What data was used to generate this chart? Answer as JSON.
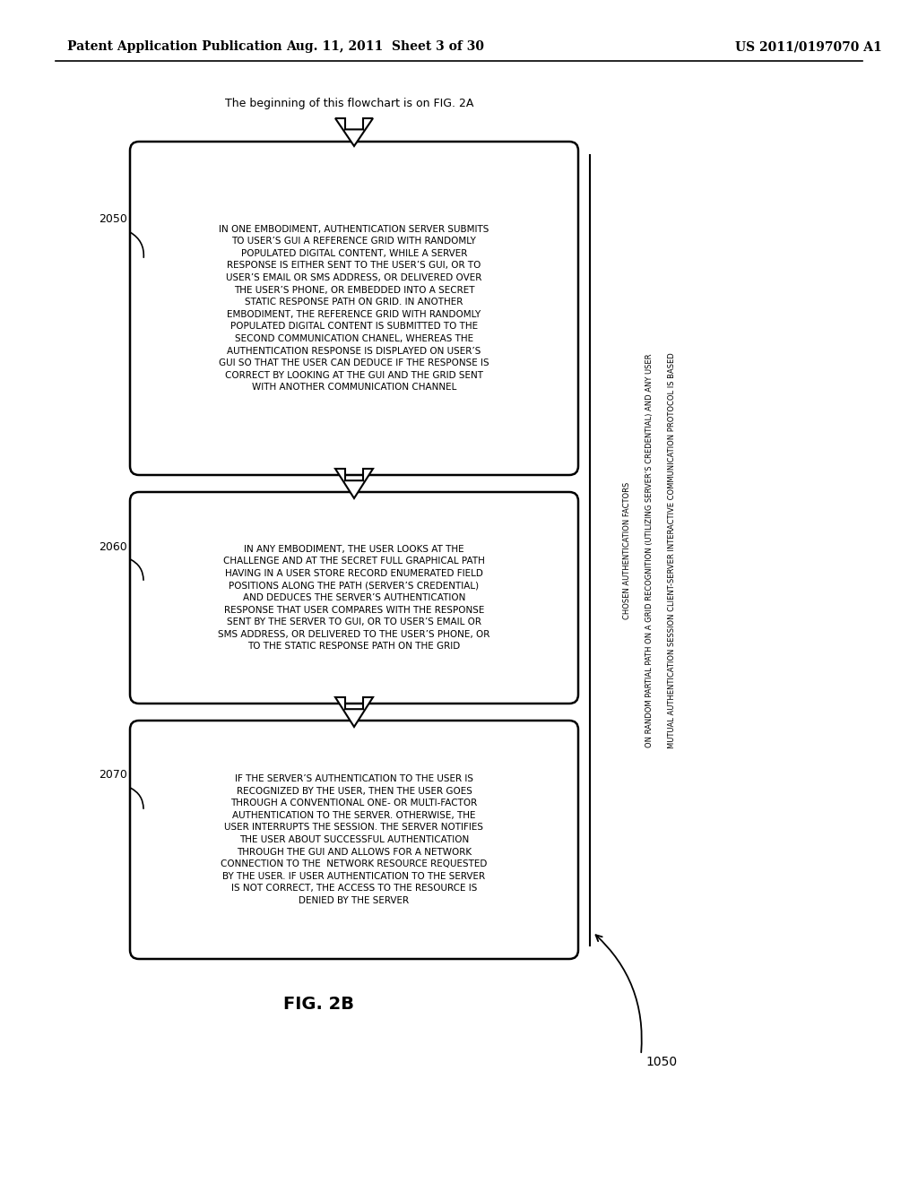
{
  "background_color": "#ffffff",
  "header_left": "Patent Application Publication",
  "header_mid": "Aug. 11, 2011  Sheet 3 of 30",
  "header_right": "US 2011/0197070 A1",
  "top_note": "The beginning of this flowchart is on FIG. 2A",
  "fig_label": "FIG. 2B",
  "arrow_label": "1050",
  "side_label_line1": "MUTUAL AUTHENTICATION SESSION CLIENT-SERVER INTERACTIVE COMMUNICATION PROTOCOL IS BASED",
  "side_label_line2": "ON RANDOM PARTIAL PATH ON A GRID RECOGNITION (UTILIZING SERVER’S CREDENTIAL) AND ANY USER",
  "side_label_line3": "CHOSEN AUTHENTICATION FACTORS",
  "box1_label": "2050",
  "box1_text": "IN ONE EMBODIMENT, AUTHENTICATION SERVER SUBMITS\nTO USER’S GUI A REFERENCE GRID WITH RANDOMLY\nPOPULATED DIGITAL CONTENT, WHILE A SERVER\nRESPONSE IS EITHER SENT TO THE USER’S GUI, OR TO\nUSER’S EMAIL OR SMS ADDRESS, OR DELIVERED OVER\nTHE USER’S PHONE, OR EMBEDDED INTO A SECRET\nSTATIC RESPONSE PATH ON GRID. IN ANOTHER\nEMBODIMENT, THE REFERENCE GRID WITH RANDOMLY\nPOPULATED DIGITAL CONTENT IS SUBMITTED TO THE\nSECOND COMMUNICATION CHANEL, WHEREAS THE\nAUTHENTICATION RESPONSE IS DISPLAYED ON USER’S\nGUI SO THAT THE USER CAN DEDUCE IF THE RESPONSE IS\nCORRECT BY LOOKING AT THE GUI AND THE GRID SENT\nWITH ANOTHER COMMUNICATION CHANNEL",
  "box2_label": "2060",
  "box2_text": "IN ANY EMBODIMENT, THE USER LOOKS AT THE\nCHALLENGE AND AT THE SECRET FULL GRAPHICAL PATH\nHAVING IN A USER STORE RECORD ENUMERATED FIELD\nPOSITIONS ALONG THE PATH (SERVER’S CREDENTIAL)\nAND DEDUCES THE SERVER’S AUTHENTICATION\nRESPONSE THAT USER COMPARES WITH THE RESPONSE\nSENT BY THE SERVER TO GUI, OR TO USER’S EMAIL OR\nSMS ADDRESS, OR DELIVERED TO THE USER’S PHONE, OR\nTO THE STATIC RESPONSE PATH ON THE GRID",
  "box3_label": "2070",
  "box3_text": "IF THE SERVER’S AUTHENTICATION TO THE USER IS\nRECOGNIZED BY THE USER, THEN THE USER GOES\nTHROUGH A CONVENTIONAL ONE- OR MULTI-FACTOR\nAUTHENTICATION TO THE SERVER. OTHERWISE, THE\nUSER INTERRUPTS THE SESSION. THE SERVER NOTIFIES\nTHE USER ABOUT SUCCESSFUL AUTHENTICATION\nTHROUGH THE GUI AND ALLOWS FOR A NETWORK\nCONNECTION TO THE  NETWORK RESOURCE REQUESTED\nBY THE USER. IF USER AUTHENTICATION TO THE SERVER\nIS NOT CORRECT, THE ACCESS TO THE RESOURCE IS\nDENIED BY THE SERVER"
}
